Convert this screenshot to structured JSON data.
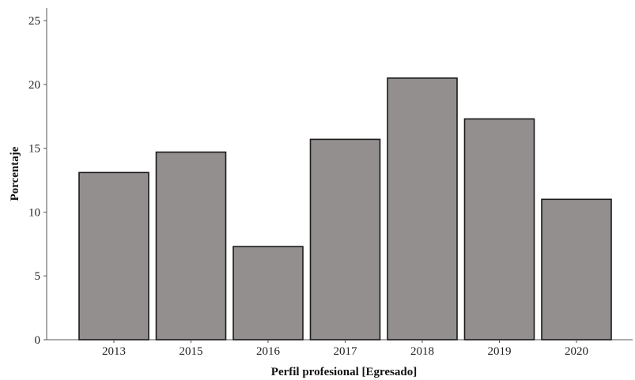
{
  "chart_data": {
    "type": "bar",
    "categories": [
      "2013",
      "2015",
      "2016",
      "2017",
      "2018",
      "2019",
      "2020"
    ],
    "values": [
      13.1,
      14.7,
      7.3,
      15.7,
      20.5,
      17.3,
      11.0
    ],
    "xlabel": "Perfil profesional [Egresado]",
    "ylabel": "Porcentaje",
    "ylim": [
      0,
      26
    ],
    "yticks": [
      0,
      5,
      10,
      15,
      20,
      25
    ],
    "grid": false,
    "bar_color": "#938f8e",
    "bar_edge_color": "#1a1a1a"
  }
}
